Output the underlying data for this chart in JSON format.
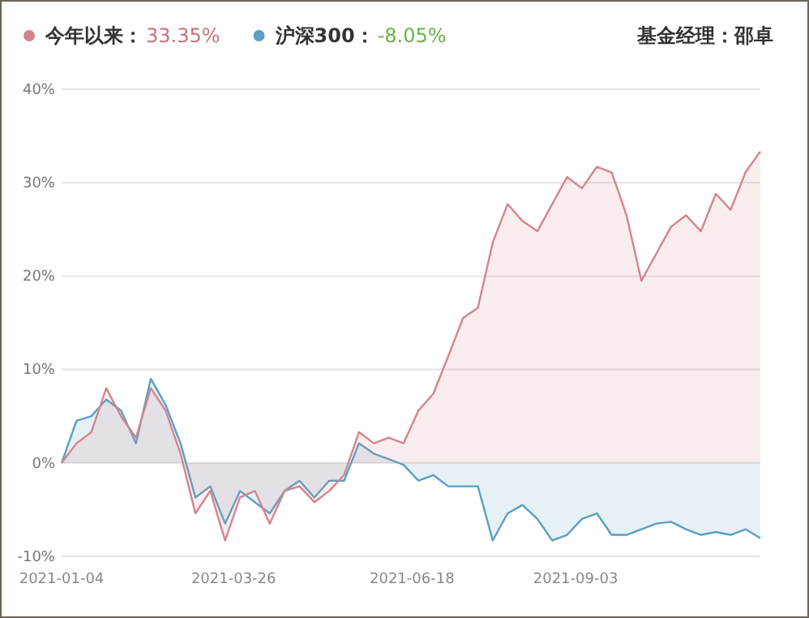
{
  "chart_data": {
    "type": "area",
    "x": [
      "2021-01-04",
      "2021-01-11",
      "2021-01-18",
      "2021-01-25",
      "2021-02-01",
      "2021-02-08",
      "2021-02-15",
      "2021-02-22",
      "2021-03-01",
      "2021-03-08",
      "2021-03-15",
      "2021-03-22",
      "2021-03-29",
      "2021-04-05",
      "2021-04-12",
      "2021-04-19",
      "2021-04-26",
      "2021-05-03",
      "2021-05-10",
      "2021-05-17",
      "2021-05-24",
      "2021-05-31",
      "2021-06-07",
      "2021-06-14",
      "2021-06-21",
      "2021-06-28",
      "2021-07-05",
      "2021-07-12",
      "2021-07-19",
      "2021-07-26",
      "2021-08-02",
      "2021-08-09",
      "2021-08-16",
      "2021-08-23",
      "2021-08-30",
      "2021-09-06",
      "2021-09-13",
      "2021-09-20",
      "2021-09-27",
      "2021-10-04",
      "2021-10-11",
      "2021-10-18",
      "2021-10-25",
      "2021-11-01",
      "2021-11-08",
      "2021-11-15",
      "2021-11-22",
      "2021-11-29"
    ],
    "series": [
      {
        "name": "今年以来：",
        "color": "#d4848e",
        "values": [
          0,
          2.1,
          3.3,
          8,
          5,
          2.7,
          8,
          5.6,
          1,
          -5.4,
          -3,
          -8.3,
          -3.7,
          -3,
          -6.5,
          -3,
          -2.5,
          -4.2,
          -3,
          -1.3,
          3.3,
          2.1,
          2.7,
          2.1,
          5.6,
          7.4,
          11.4,
          15.5,
          16.6,
          23.6,
          27.7,
          25.9,
          24.8,
          27.7,
          30.6,
          29.4,
          31.7,
          31.1,
          26.5,
          19.5,
          22.4,
          25.3,
          26.5,
          24.8,
          28.8,
          27.1,
          31.1,
          33.35
        ]
      },
      {
        "name": "沪深300：",
        "color": "#5a9fc4",
        "values": [
          0,
          4.5,
          5,
          6.8,
          5.6,
          2.1,
          9,
          6.2,
          2.1,
          -3.7,
          -2.5,
          -6.5,
          -3,
          -4.2,
          -5.4,
          -3,
          -1.9,
          -3.7,
          -1.9,
          -1.9,
          2.1,
          1,
          0.4,
          -0.2,
          -1.9,
          -1.3,
          -2.5,
          -2.5,
          -2.5,
          -8.3,
          -5.4,
          -4.5,
          -6,
          -8.3,
          -7.7,
          -6,
          -5.4,
          -7.7,
          -7.7,
          -7.1,
          -6.5,
          -6.3,
          -7.1,
          -7.7,
          -7.4,
          -7.7,
          -7.1,
          -8.05
        ]
      }
    ],
    "xlim": [
      "2021-01-04",
      "2021-11-29"
    ],
    "xticks": [
      {
        "value": "2021-01-04",
        "label": "2021-01-04"
      },
      {
        "value": "2021-03-26",
        "label": "2021-03-26"
      },
      {
        "value": "2021-06-18",
        "label": "2021-06-18"
      },
      {
        "value": "2021-09-03",
        "label": "2021-09-03"
      }
    ],
    "ylim": [
      -10,
      40
    ],
    "yticks": [
      {
        "value": -10,
        "label": "-10%"
      },
      {
        "value": 0,
        "label": "0%"
      },
      {
        "value": 10,
        "label": "10%"
      },
      {
        "value": 20,
        "label": "20%"
      },
      {
        "value": 30,
        "label": "30%"
      },
      {
        "value": 40,
        "label": "40%"
      }
    ],
    "grid": "y",
    "legend": "top left",
    "annotations": [
      "33.35%",
      "-8.05%",
      "基金经理：邵卓"
    ]
  }
}
